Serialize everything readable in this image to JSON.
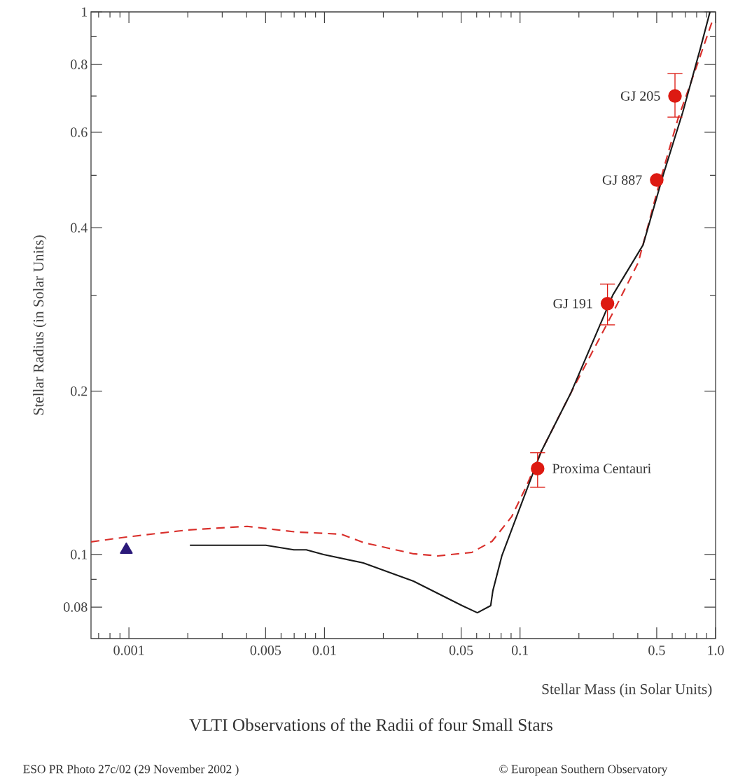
{
  "chart_data": {
    "type": "line",
    "title": "VLTI Observations of the Radii of four Small Stars",
    "xlabel": "Stellar Mass (in Solar Units)",
    "ylabel": "Stellar Radius (in Solar Units)",
    "log": "xy",
    "xlim": [
      0.00064,
      1.0
    ],
    "ylim": [
      0.07,
      1
    ],
    "xticks": [
      0.001,
      0.005,
      0.01,
      0.05,
      0.1,
      0.5,
      {
        "value": 1,
        "label": "1.0"
      },
      {
        "value": 0.0007,
        "label": null
      },
      {
        "value": 0.0008,
        "label": null
      },
      {
        "value": 0.0009,
        "label": null
      },
      {
        "value": 0.002,
        "label": null
      },
      {
        "value": 0.003,
        "label": null
      },
      {
        "value": 0.004,
        "label": null
      },
      {
        "value": 0.006,
        "label": null
      },
      {
        "value": 0.007,
        "label": null
      },
      {
        "value": 0.008,
        "label": null
      },
      {
        "value": 0.009,
        "label": null
      },
      {
        "value": 0.02,
        "label": null
      },
      {
        "value": 0.03,
        "label": null
      },
      {
        "value": 0.04,
        "label": null
      },
      {
        "value": 0.06,
        "label": null
      },
      {
        "value": 0.07,
        "label": null
      },
      {
        "value": 0.08,
        "label": null
      },
      {
        "value": 0.09,
        "label": null
      },
      {
        "value": 0.2,
        "label": null
      },
      {
        "value": 0.3,
        "label": null
      },
      {
        "value": 0.4,
        "label": null
      },
      {
        "value": 0.6,
        "label": null
      },
      {
        "value": 0.7,
        "label": null
      },
      {
        "value": 0.8,
        "label": null
      },
      {
        "value": 0.9,
        "label": null
      }
    ],
    "yticks": [
      0.08,
      0.1,
      0.2,
      0.4,
      0.6,
      0.8,
      1,
      {
        "value": 0.09,
        "label": null
      },
      {
        "value": 0.3,
        "label": null
      },
      {
        "value": 0.5,
        "label": null
      },
      {
        "value": 0.7,
        "label": null
      },
      {
        "value": 0.9,
        "label": null
      }
    ],
    "series": [
      {
        "color": "#d9302c",
        "line_style": "dashed",
        "marker": "none",
        "x": [
          0.00064,
          0.00097,
          0.00201,
          0.00402,
          0.0072,
          0.0122,
          0.0158,
          0.0285,
          0.0379,
          0.0568,
          0.072,
          0.0906,
          0.1077,
          0.128,
          0.1825,
          0.2985,
          0.402,
          0.506,
          0.641,
          0.815,
          0.968
        ],
        "values": [
          0.1055,
          0.1077,
          0.111,
          0.1127,
          0.11,
          0.109,
          0.1052,
          0.1003,
          0.0994,
          0.1009,
          0.1058,
          0.1174,
          0.1335,
          0.1545,
          0.199,
          0.279,
          0.345,
          0.471,
          0.634,
          0.809,
          0.968
        ]
      },
      {
        "color": "#1a1a1a",
        "line_style": "solid",
        "marker": "none",
        "x": [
          0.00205,
          0.00501,
          0.00697,
          0.00807,
          0.0099,
          0.0158,
          0.0285,
          0.0506,
          0.0605,
          0.0708,
          0.0726,
          0.0807,
          0.1016,
          0.128,
          0.1825,
          0.2985,
          0.4256,
          0.54,
          0.679,
          0.834,
          0.936
        ],
        "values": [
          0.104,
          0.104,
          0.102,
          0.102,
          0.1,
          0.0965,
          0.0893,
          0.0805,
          0.0781,
          0.0805,
          0.0857,
          0.0994,
          0.124,
          0.1545,
          0.199,
          0.301,
          0.372,
          0.501,
          0.653,
          0.854,
          1.0
        ]
      },
      {
        "type": "scatter",
        "color": "#dd1a12",
        "marker": "circle",
        "x": [
          0.123,
          0.28,
          0.5,
          0.62
        ],
        "values": [
          0.144,
          0.29,
          0.49,
          0.7
        ],
        "errors": [
          [
            0.133,
            0.154
          ],
          [
            0.265,
            0.315
          ],
          null,
          [
            0.64,
            0.77
          ]
        ]
      },
      {
        "type": "scatter",
        "color": "#2b1a7a",
        "marker": "triangle",
        "x": [
          0.00097
        ],
        "values": [
          0.102
        ]
      }
    ],
    "annotations": [
      {
        "text": "Proxima Centauri",
        "x": 0.123,
        "y": 0.144
      },
      {
        "text": "GJ 191",
        "x": 0.28,
        "y": 0.29
      },
      {
        "text": "GJ 887",
        "x": 0.5,
        "y": 0.49
      },
      {
        "text": "GJ 205",
        "x": 0.62,
        "y": 0.7
      },
      "ESO PR Photo 27c/02 (29 November 2002 )",
      "© European Southern Observatory"
    ]
  }
}
